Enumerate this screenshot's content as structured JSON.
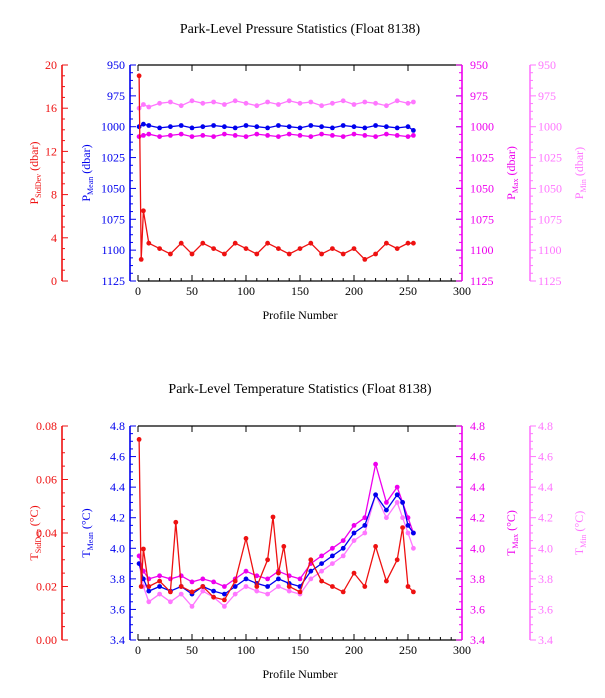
{
  "chart_data": [
    {
      "type": "line",
      "title": "Park-Level Pressure Statistics (Float 8138)",
      "xlabel": "Profile Number",
      "xticks": [
        "0",
        "50",
        "100",
        "150",
        "200",
        "250",
        "300"
      ],
      "xlim": [
        0,
        300
      ],
      "grid": false,
      "y_axes": [
        {
          "key": "sd",
          "label_main": "P",
          "label_sub": "StdDev",
          "label_unit": " (dbar)",
          "color": "#ee1111",
          "ylim": [
            0,
            20
          ],
          "inverted": false,
          "ticks": [
            "0",
            "4",
            "8",
            "12",
            "16",
            "20"
          ]
        },
        {
          "key": "mean",
          "label_main": "P",
          "label_sub": "Mean",
          "label_unit": " (dbar)",
          "color": "#0000ee",
          "ylim": [
            950,
            1125
          ],
          "inverted": true,
          "ticks": [
            "950",
            "975",
            "1000",
            "1025",
            "1050",
            "1075",
            "1100",
            "1125"
          ]
        },
        {
          "key": "max",
          "label_main": "P",
          "label_sub": "Max",
          "label_unit": " (dbar)",
          "color": "#ee00ee",
          "ylim": [
            950,
            1125
          ],
          "inverted": true,
          "ticks": [
            "950",
            "975",
            "1000",
            "1025",
            "1050",
            "1075",
            "1100",
            "1125"
          ]
        },
        {
          "key": "min",
          "label_main": "P",
          "label_sub": "Min",
          "label_unit": " (dbar)",
          "color": "#ff77ff",
          "ylim": [
            950,
            1125
          ],
          "inverted": true,
          "ticks": [
            "950",
            "975",
            "1000",
            "1025",
            "1050",
            "1075",
            "1100",
            "1125"
          ]
        }
      ],
      "series": [
        {
          "axis": "min",
          "color": "#ff77ff",
          "x": [
            1,
            5,
            10,
            20,
            30,
            40,
            50,
            60,
            70,
            80,
            90,
            100,
            110,
            120,
            130,
            140,
            150,
            160,
            170,
            180,
            190,
            200,
            210,
            220,
            230,
            240,
            250,
            255
          ],
          "values": [
            985,
            982,
            984,
            981,
            980,
            983,
            979,
            981,
            980,
            982,
            979,
            981,
            983,
            980,
            982,
            979,
            981,
            980,
            983,
            981,
            979,
            982,
            980,
            981,
            983,
            979,
            981,
            980
          ]
        },
        {
          "axis": "max",
          "color": "#ee00ee",
          "x": [
            1,
            5,
            10,
            20,
            30,
            40,
            50,
            60,
            70,
            80,
            90,
            100,
            110,
            120,
            130,
            140,
            150,
            160,
            170,
            180,
            190,
            200,
            210,
            220,
            230,
            240,
            250,
            255
          ],
          "values": [
            1008,
            1007,
            1006,
            1008,
            1007,
            1006,
            1008,
            1007,
            1008,
            1006,
            1007,
            1008,
            1006,
            1007,
            1008,
            1006,
            1007,
            1008,
            1006,
            1007,
            1008,
            1006,
            1007,
            1008,
            1006,
            1007,
            1008,
            1007
          ]
        },
        {
          "axis": "mean",
          "color": "#0000ee",
          "x": [
            1,
            5,
            10,
            20,
            30,
            40,
            50,
            60,
            70,
            80,
            90,
            100,
            110,
            120,
            130,
            140,
            150,
            160,
            170,
            180,
            190,
            200,
            210,
            220,
            230,
            240,
            250,
            255
          ],
          "values": [
            1000,
            998,
            999,
            1001,
            1000,
            999,
            1001,
            1000,
            999,
            1000,
            1001,
            999,
            1000,
            1001,
            999,
            1000,
            1001,
            999,
            1000,
            1001,
            999,
            1000,
            1001,
            999,
            1000,
            1001,
            1000,
            1003
          ]
        },
        {
          "axis": "sd",
          "color": "#ee1111",
          "x": [
            1,
            3,
            5,
            10,
            20,
            30,
            40,
            50,
            60,
            70,
            80,
            90,
            100,
            110,
            120,
            130,
            140,
            150,
            160,
            170,
            180,
            190,
            200,
            210,
            220,
            230,
            240,
            250,
            255
          ],
          "values": [
            19,
            2,
            6.5,
            3.5,
            3,
            2.5,
            3.5,
            2.5,
            3.5,
            3,
            2.5,
            3.5,
            3,
            2.5,
            3.5,
            3,
            2.5,
            3,
            3.5,
            2.5,
            3,
            2.5,
            3,
            2,
            2.5,
            3.5,
            3,
            3.5,
            3.5
          ]
        }
      ]
    },
    {
      "type": "line",
      "title": "Park-Level Temperature Statistics (Float 8138)",
      "xlabel": "Profile Number",
      "xticks": [
        "0",
        "50",
        "100",
        "150",
        "200",
        "250",
        "300"
      ],
      "xlim": [
        0,
        300
      ],
      "grid": false,
      "y_axes": [
        {
          "key": "sd",
          "label_main": "T",
          "label_sub": "StdDev",
          "label_unit": " (°C)",
          "color": "#ee1111",
          "ylim": [
            0,
            0.08
          ],
          "inverted": false,
          "ticks": [
            "0.00",
            "0.02",
            "0.04",
            "0.06",
            "0.08"
          ]
        },
        {
          "key": "mean",
          "label_main": "T",
          "label_sub": "Mean",
          "label_unit": " (°C)",
          "color": "#0000ee",
          "ylim": [
            3.4,
            4.8
          ],
          "inverted": false,
          "ticks": [
            "3.4",
            "3.6",
            "3.8",
            "4.0",
            "4.2",
            "4.4",
            "4.6",
            "4.8"
          ]
        },
        {
          "key": "max",
          "label_main": "T",
          "label_sub": "Max",
          "label_unit": " (°C)",
          "color": "#ee00ee",
          "ylim": [
            3.4,
            4.8
          ],
          "inverted": false,
          "ticks": [
            "3.4",
            "3.6",
            "3.8",
            "4.0",
            "4.2",
            "4.4",
            "4.6",
            "4.8"
          ]
        },
        {
          "key": "min",
          "label_main": "T",
          "label_sub": "Min",
          "label_unit": " (°C)",
          "color": "#ff77ff",
          "ylim": [
            3.4,
            4.8
          ],
          "inverted": false,
          "ticks": [
            "3.4",
            "3.6",
            "3.8",
            "4.0",
            "4.2",
            "4.4",
            "4.6",
            "4.8"
          ]
        }
      ],
      "series": [
        {
          "axis": "min",
          "color": "#ff77ff",
          "x": [
            1,
            5,
            10,
            20,
            30,
            40,
            50,
            60,
            70,
            80,
            90,
            100,
            110,
            120,
            130,
            140,
            150,
            160,
            170,
            180,
            190,
            200,
            210,
            220,
            230,
            240,
            245,
            250,
            255
          ],
          "values": [
            3.9,
            3.75,
            3.65,
            3.7,
            3.65,
            3.7,
            3.62,
            3.72,
            3.68,
            3.62,
            3.7,
            3.75,
            3.72,
            3.7,
            3.75,
            3.72,
            3.7,
            3.8,
            3.85,
            3.9,
            3.95,
            4.05,
            4.1,
            4.35,
            4.2,
            4.3,
            4.2,
            4.1,
            4.0
          ]
        },
        {
          "axis": "max",
          "color": "#ee00ee",
          "x": [
            1,
            5,
            10,
            20,
            30,
            40,
            50,
            60,
            70,
            80,
            90,
            100,
            110,
            120,
            130,
            140,
            150,
            160,
            170,
            180,
            190,
            200,
            210,
            220,
            230,
            240,
            245,
            250,
            255
          ],
          "values": [
            3.95,
            3.85,
            3.8,
            3.82,
            3.8,
            3.82,
            3.78,
            3.8,
            3.78,
            3.75,
            3.8,
            3.85,
            3.82,
            3.8,
            3.85,
            3.82,
            3.8,
            3.9,
            3.95,
            4.0,
            4.05,
            4.15,
            4.2,
            4.55,
            4.3,
            4.4,
            4.3,
            4.2,
            4.1
          ]
        },
        {
          "axis": "mean",
          "color": "#0000ee",
          "x": [
            1,
            5,
            10,
            20,
            30,
            40,
            50,
            60,
            70,
            80,
            90,
            100,
            110,
            120,
            130,
            140,
            150,
            160,
            170,
            180,
            190,
            200,
            210,
            220,
            230,
            240,
            245,
            250,
            255
          ],
          "values": [
            3.9,
            3.8,
            3.72,
            3.75,
            3.72,
            3.75,
            3.7,
            3.75,
            3.72,
            3.7,
            3.75,
            3.8,
            3.77,
            3.75,
            3.8,
            3.77,
            3.75,
            3.85,
            3.9,
            3.95,
            4.0,
            4.1,
            4.15,
            4.35,
            4.25,
            4.35,
            4.3,
            4.15,
            4.1
          ]
        },
        {
          "axis": "sd",
          "color": "#ee1111",
          "x": [
            1,
            3,
            5,
            10,
            20,
            30,
            35,
            40,
            50,
            60,
            70,
            80,
            90,
            100,
            110,
            120,
            125,
            130,
            135,
            140,
            150,
            160,
            170,
            180,
            190,
            200,
            210,
            220,
            230,
            240,
            245,
            250,
            255
          ],
          "values": [
            0.075,
            0.02,
            0.034,
            0.02,
            0.022,
            0.018,
            0.044,
            0.02,
            0.018,
            0.02,
            0.016,
            0.015,
            0.022,
            0.038,
            0.02,
            0.03,
            0.046,
            0.025,
            0.035,
            0.02,
            0.018,
            0.03,
            0.022,
            0.02,
            0.018,
            0.025,
            0.02,
            0.035,
            0.022,
            0.03,
            0.042,
            0.02,
            0.018
          ]
        }
      ]
    }
  ]
}
